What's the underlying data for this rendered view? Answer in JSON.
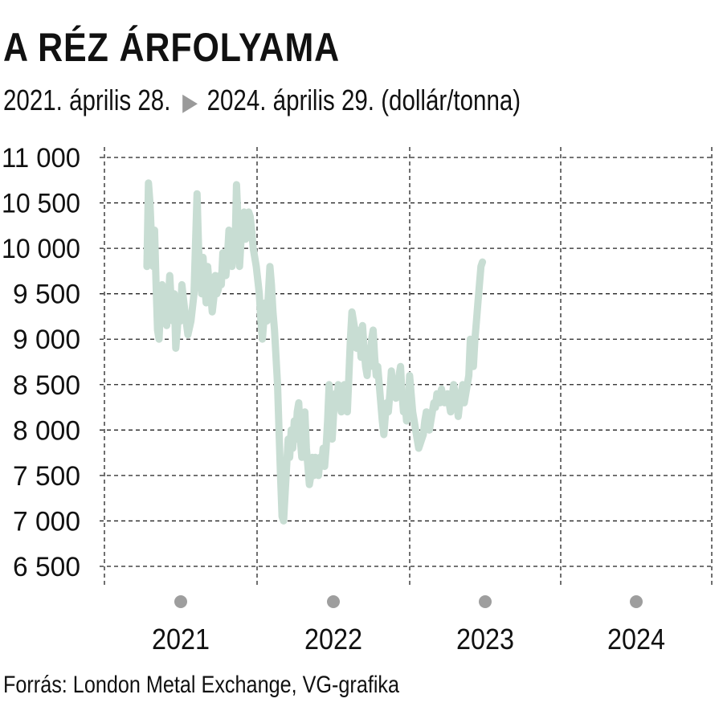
{
  "chart_data": {
    "type": "line",
    "title": "A RÉZ ÁRFOLYAMA",
    "subtitle_start": "2021. április 28.",
    "subtitle_end": "2024. április 29. (dollár/tonna)",
    "source": "Forrás: London Metal Exchange, VG-grafika",
    "ylim": [
      6500,
      11000
    ],
    "yticks": [
      11000,
      10500,
      10000,
      9500,
      9000,
      8500,
      8000,
      7500,
      7000,
      6500
    ],
    "ytick_labels": [
      "11 000",
      "10 500",
      "10 000",
      "9 500",
      "9 000",
      "8 500",
      "8 000",
      "7 500",
      "7 000",
      "6 500"
    ],
    "xlim": [
      2020.47,
      2024.47
    ],
    "xticks": [
      2021,
      2022,
      2023,
      2024
    ],
    "xtick_labels": [
      "2021",
      "2022",
      "2023",
      "2024"
    ],
    "grid": true,
    "line_color": "#c8ddd3",
    "dot_color": "#9e9e9e",
    "series": [
      {
        "values": [
          [
            2020.75,
            9800
          ],
          [
            2020.76,
            10720
          ],
          [
            2020.77,
            10500
          ],
          [
            2020.78,
            10100
          ],
          [
            2020.79,
            9800
          ],
          [
            2020.8,
            10200
          ],
          [
            2020.81,
            9600
          ],
          [
            2020.82,
            9100
          ],
          [
            2020.83,
            9000
          ],
          [
            2020.84,
            9400
          ],
          [
            2020.85,
            9600
          ],
          [
            2020.86,
            9300
          ],
          [
            2020.87,
            9500
          ],
          [
            2020.88,
            9150
          ],
          [
            2020.89,
            9400
          ],
          [
            2020.9,
            9700
          ],
          [
            2020.91,
            9400
          ],
          [
            2020.92,
            9200
          ],
          [
            2020.93,
            9500
          ],
          [
            2020.94,
            8900
          ],
          [
            2020.95,
            9100
          ],
          [
            2020.96,
            9400
          ],
          [
            2020.97,
            9200
          ],
          [
            2020.98,
            9600
          ],
          [
            2021.0,
            9300
          ],
          [
            2021.02,
            9050
          ],
          [
            2021.04,
            9200
          ],
          [
            2021.06,
            9500
          ],
          [
            2021.08,
            10600
          ],
          [
            2021.09,
            10000
          ],
          [
            2021.1,
            9700
          ],
          [
            2021.11,
            9500
          ],
          [
            2021.12,
            9900
          ],
          [
            2021.13,
            9600
          ],
          [
            2021.14,
            9400
          ],
          [
            2021.15,
            9800
          ],
          [
            2021.16,
            9600
          ],
          [
            2021.17,
            9500
          ],
          [
            2021.18,
            9300
          ],
          [
            2021.19,
            9450
          ],
          [
            2021.2,
            9700
          ],
          [
            2021.21,
            9500
          ],
          [
            2021.22,
            9550
          ],
          [
            2021.23,
            9700
          ],
          [
            2021.24,
            9600
          ],
          [
            2021.25,
            9950
          ],
          [
            2021.26,
            9800
          ],
          [
            2021.27,
            9700
          ],
          [
            2021.28,
            9900
          ],
          [
            2021.29,
            10200
          ],
          [
            2021.3,
            10000
          ],
          [
            2021.31,
            9800
          ],
          [
            2021.32,
            10050
          ],
          [
            2021.33,
            9950
          ],
          [
            2021.34,
            10700
          ],
          [
            2021.35,
            10300
          ],
          [
            2021.36,
            9800
          ],
          [
            2021.37,
            10100
          ],
          [
            2021.38,
            10300
          ],
          [
            2021.39,
            10400
          ],
          [
            2021.4,
            10100
          ],
          [
            2021.41,
            10300
          ],
          [
            2021.42,
            10400
          ],
          [
            2021.43,
            10350
          ],
          [
            2021.44,
            10200
          ],
          [
            2021.45,
            10000
          ],
          [
            2021.47,
            9800
          ],
          [
            2021.49,
            9500
          ],
          [
            2021.5,
            9200
          ],
          [
            2021.51,
            9000
          ],
          [
            2021.52,
            9200
          ],
          [
            2021.53,
            9400
          ],
          [
            2021.54,
            9200
          ],
          [
            2021.55,
            9500
          ],
          [
            2021.56,
            9800
          ],
          [
            2021.57,
            9600
          ],
          [
            2021.58,
            9300
          ],
          [
            2021.59,
            9100
          ],
          [
            2021.6,
            8800
          ],
          [
            2021.61,
            8500
          ],
          [
            2021.62,
            8000
          ],
          [
            2021.63,
            7500
          ],
          [
            2021.64,
            7050
          ],
          [
            2021.65,
            7000
          ],
          [
            2021.66,
            7300
          ],
          [
            2021.67,
            7600
          ],
          [
            2021.68,
            7900
          ],
          [
            2021.69,
            7700
          ],
          [
            2021.7,
            8000
          ],
          [
            2021.71,
            7800
          ],
          [
            2021.72,
            8100
          ],
          [
            2021.73,
            7900
          ],
          [
            2021.74,
            8200
          ],
          [
            2021.75,
            8300
          ],
          [
            2021.76,
            7900
          ],
          [
            2021.77,
            7700
          ],
          [
            2021.78,
            8000
          ],
          [
            2021.79,
            8200
          ],
          [
            2021.8,
            7800
          ],
          [
            2021.81,
            7600
          ],
          [
            2021.82,
            7400
          ],
          [
            2021.83,
            7500
          ],
          [
            2021.84,
            7700
          ],
          [
            2021.85,
            7500
          ],
          [
            2021.86,
            7700
          ],
          [
            2021.87,
            7600
          ],
          [
            2021.88,
            7500
          ],
          [
            2021.89,
            7700
          ],
          [
            2021.9,
            7600
          ],
          [
            2021.91,
            7800
          ],
          [
            2021.92,
            7600
          ],
          [
            2021.93,
            7800
          ],
          [
            2021.94,
            8100
          ],
          [
            2021.95,
            8500
          ],
          [
            2021.96,
            8200
          ],
          [
            2021.97,
            7900
          ],
          [
            2021.98,
            8200
          ],
          [
            2021.99,
            8400
          ],
          [
            2022.0,
            8300
          ],
          [
            2022.01,
            8500
          ],
          [
            2022.02,
            8300
          ],
          [
            2022.03,
            8200
          ],
          [
            2022.04,
            8300
          ],
          [
            2022.05,
            8500
          ],
          [
            2022.06,
            8300
          ],
          [
            2022.07,
            8200
          ],
          [
            2022.08,
            8600
          ],
          [
            2022.09,
            9000
          ],
          [
            2022.1,
            9300
          ],
          [
            2022.11,
            9200
          ],
          [
            2022.12,
            9100
          ],
          [
            2022.13,
            8900
          ],
          [
            2022.14,
            9000
          ],
          [
            2022.15,
            9100
          ],
          [
            2022.16,
            8800
          ],
          [
            2022.17,
            9150
          ],
          [
            2022.18,
            8900
          ],
          [
            2022.19,
            8700
          ],
          [
            2022.2,
            8600
          ],
          [
            2022.21,
            8900
          ],
          [
            2022.22,
            8700
          ],
          [
            2022.23,
            9000
          ],
          [
            2022.24,
            9100
          ],
          [
            2022.25,
            8800
          ],
          [
            2022.26,
            8600
          ],
          [
            2022.27,
            8700
          ],
          [
            2022.28,
            8500
          ],
          [
            2022.29,
            8300
          ],
          [
            2022.3,
            8100
          ],
          [
            2022.31,
            7950
          ],
          [
            2022.32,
            8150
          ],
          [
            2022.33,
            8300
          ],
          [
            2022.34,
            8200
          ],
          [
            2022.35,
            8400
          ],
          [
            2022.36,
            8650
          ],
          [
            2022.37,
            8400
          ],
          [
            2022.38,
            8500
          ],
          [
            2022.39,
            8350
          ],
          [
            2022.4,
            8500
          ],
          [
            2022.41,
            8600
          ],
          [
            2022.42,
            8700
          ],
          [
            2022.43,
            8400
          ],
          [
            2022.44,
            8200
          ],
          [
            2022.45,
            8300
          ],
          [
            2022.46,
            8100
          ],
          [
            2022.47,
            8200
          ],
          [
            2022.48,
            8600
          ],
          [
            2022.49,
            8400
          ],
          [
            2022.5,
            8200
          ],
          [
            2022.51,
            8100
          ],
          [
            2022.52,
            8000
          ],
          [
            2022.53,
            7900
          ],
          [
            2022.54,
            7800
          ],
          [
            2022.55,
            7850
          ],
          [
            2022.56,
            7900
          ],
          [
            2022.57,
            7950
          ],
          [
            2022.58,
            8100
          ],
          [
            2022.59,
            8200
          ],
          [
            2022.6,
            8050
          ],
          [
            2022.61,
            8000
          ],
          [
            2022.62,
            8100
          ],
          [
            2022.63,
            8200
          ],
          [
            2022.64,
            8300
          ],
          [
            2022.65,
            8250
          ],
          [
            2022.66,
            8400
          ],
          [
            2022.67,
            8350
          ],
          [
            2022.68,
            8300
          ],
          [
            2022.69,
            8450
          ],
          [
            2022.7,
            8350
          ],
          [
            2022.71,
            8300
          ],
          [
            2022.72,
            8350
          ],
          [
            2022.73,
            8400
          ],
          [
            2022.74,
            8300
          ],
          [
            2022.75,
            8200
          ],
          [
            2022.76,
            8350
          ],
          [
            2022.77,
            8500
          ],
          [
            2022.78,
            8400
          ],
          [
            2022.79,
            8300
          ],
          [
            2022.8,
            8150
          ],
          [
            2022.81,
            8300
          ],
          [
            2022.82,
            8400
          ],
          [
            2022.83,
            8500
          ],
          [
            2022.84,
            8300
          ],
          [
            2022.85,
            8400
          ],
          [
            2022.86,
            8500
          ],
          [
            2022.87,
            8600
          ],
          [
            2022.88,
            9000
          ],
          [
            2022.89,
            8800
          ],
          [
            2022.9,
            8700
          ],
          [
            2022.91,
            9000
          ],
          [
            2022.92,
            9200
          ],
          [
            2022.93,
            9400
          ],
          [
            2022.94,
            9600
          ],
          [
            2022.95,
            9800
          ],
          [
            2022.96,
            9850
          ]
        ]
      }
    ]
  }
}
